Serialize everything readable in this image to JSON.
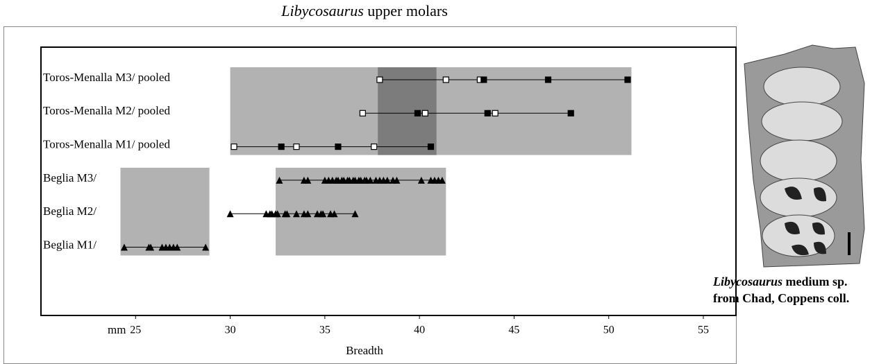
{
  "chart_data": {
    "type": "strip",
    "title": {
      "italic": "Libycosaurus",
      "rest": "upper molars"
    },
    "xlabel": "Breadth",
    "unit": "mm",
    "xlim": [
      20,
      55
    ],
    "xticks": [
      25,
      30,
      35,
      40,
      45,
      50,
      55
    ],
    "rows": [
      {
        "label": "Toros-Menalla M3/  pooled",
        "marker": "square",
        "open": [
          37.9,
          41.4,
          43.2
        ],
        "filled": [
          43.4,
          46.8,
          51.0
        ]
      },
      {
        "label": "Toros-Menalla M2/  pooled",
        "marker": "square",
        "open": [
          37.0,
          40.3,
          44.0
        ],
        "filled": [
          39.9,
          43.6,
          48.0
        ]
      },
      {
        "label": "Toros-Menalla M1/ pooled",
        "marker": "square",
        "open": [
          30.2,
          33.5,
          37.6
        ],
        "filled": [
          32.7,
          35.7,
          40.6
        ]
      },
      {
        "label": "Beglia M3/",
        "marker": "triangle",
        "filled": [
          32.6,
          33.9,
          34.1,
          35.0,
          35.2,
          35.4,
          35.6,
          35.7,
          35.9,
          36.0,
          36.2,
          36.3,
          36.5,
          36.6,
          36.8,
          36.9,
          37.1,
          37.2,
          37.4,
          37.7,
          37.9,
          38.1,
          38.3,
          38.6,
          38.8,
          40.1,
          40.6,
          40.8,
          41.0,
          41.2
        ]
      },
      {
        "label": "Beglia M2/",
        "marker": "triangle",
        "filled": [
          30.0,
          31.9,
          32.1,
          32.2,
          32.4,
          32.5,
          32.9,
          33.0,
          33.5,
          33.9,
          34.1,
          34.6,
          34.8,
          34.9,
          35.3,
          35.5,
          36.6
        ]
      },
      {
        "label": "Beglia M1/",
        "marker": "triangle",
        "filled": [
          24.4,
          25.7,
          25.8,
          26.4,
          26.6,
          26.8,
          27.0,
          27.2,
          28.7
        ]
      }
    ],
    "ranges": [
      {
        "rows": [
          0,
          2
        ],
        "xmin": 30.0,
        "xmax": 51.2,
        "color": "#b2b2b2"
      },
      {
        "rows": [
          3,
          5
        ],
        "xmin": 24.2,
        "xmax": 28.9,
        "color": "#b2b2b2"
      },
      {
        "rows": [
          3,
          5
        ],
        "xmin": 32.4,
        "xmax": 41.4,
        "color": "#b2b2b2"
      },
      {
        "rows": [
          0,
          2
        ],
        "xmin": 37.8,
        "xmax": 40.9,
        "color": "#7c7c7c"
      }
    ],
    "caption": {
      "italic": "Libycosaurus",
      "line1_rest": "medium sp.",
      "line2": "from Chad, Coppens coll."
    }
  }
}
